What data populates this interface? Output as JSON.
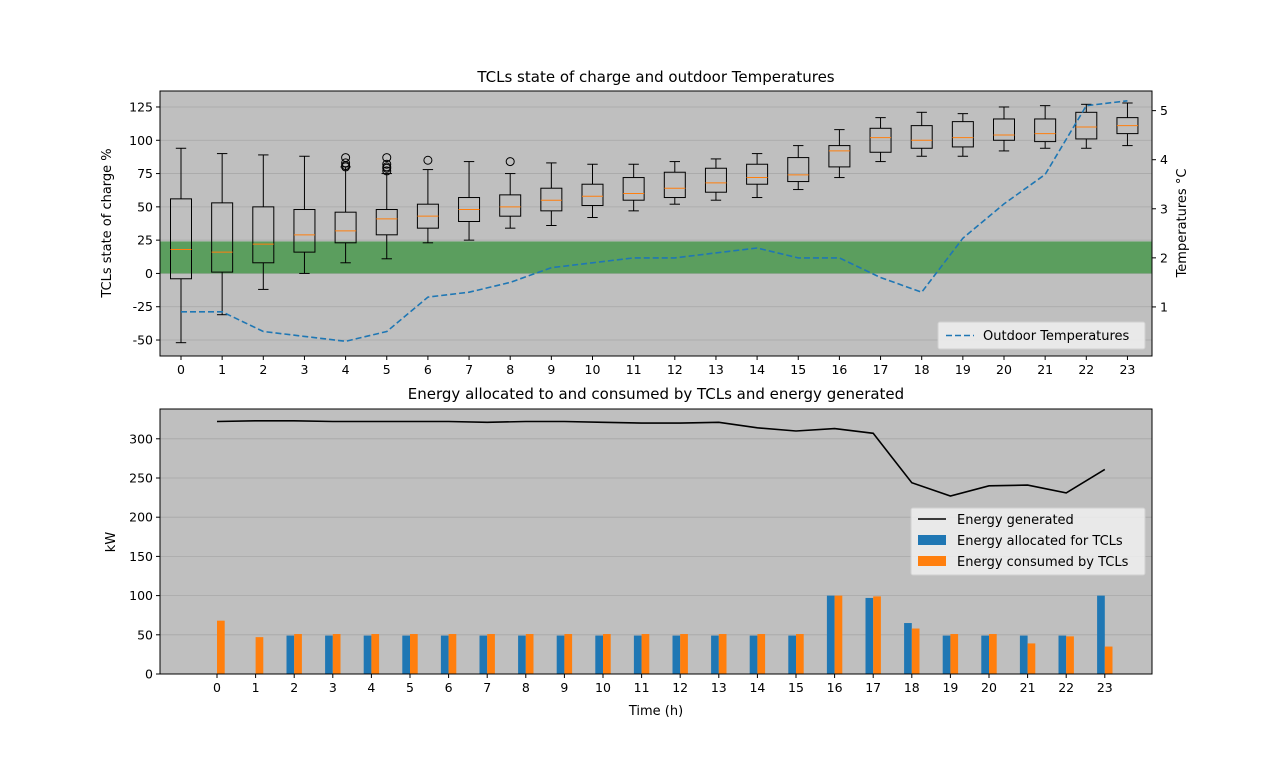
{
  "chart_data": [
    {
      "type": "box",
      "title": "TCLs state of charge and outdoor Temperatures",
      "xlabel": "",
      "ylabel": "TCLs state of charge %",
      "y2label": "Temperatures °C",
      "x": [
        0,
        1,
        2,
        3,
        4,
        5,
        6,
        7,
        8,
        9,
        10,
        11,
        12,
        13,
        14,
        15,
        16,
        17,
        18,
        19,
        20,
        21,
        22,
        23
      ],
      "ylim": [
        -62,
        137
      ],
      "y2lim": [
        0.0,
        5.4
      ],
      "yticks": [
        -50,
        -25,
        0,
        25,
        50,
        75,
        100,
        125
      ],
      "y2ticks": [
        1,
        2,
        3,
        4,
        5
      ],
      "grid": true,
      "band": {
        "from": 0,
        "to": 24,
        "color": "#5b9e5e"
      },
      "colors": {
        "background": "#bfbfbf",
        "box": "#000000",
        "median": "#ff7f0e",
        "temperature": "#1f77b4"
      },
      "boxes": [
        {
          "whislo": -52,
          "q1": -4,
          "med": 18,
          "q3": 56,
          "whishi": 94,
          "fliers": []
        },
        {
          "whislo": -31,
          "q1": 1,
          "med": 16,
          "q3": 53,
          "whishi": 90,
          "fliers": []
        },
        {
          "whislo": -12,
          "q1": 8,
          "med": 22,
          "q3": 50,
          "whishi": 89,
          "fliers": []
        },
        {
          "whislo": 0,
          "q1": 16,
          "med": 29,
          "q3": 48,
          "whishi": 88,
          "fliers": []
        },
        {
          "whislo": 8,
          "q1": 23,
          "med": 32,
          "q3": 46,
          "whishi": 80,
          "fliers": [
            80,
            81,
            83,
            87
          ]
        },
        {
          "whislo": 11,
          "q1": 29,
          "med": 41,
          "q3": 48,
          "whishi": 75,
          "fliers": [
            77,
            79,
            80,
            82,
            87
          ]
        },
        {
          "whislo": 23,
          "q1": 34,
          "med": 43,
          "q3": 52,
          "whishi": 78,
          "fliers": [
            85
          ]
        },
        {
          "whislo": 25,
          "q1": 39,
          "med": 48,
          "q3": 57,
          "whishi": 84,
          "fliers": []
        },
        {
          "whislo": 34,
          "q1": 43,
          "med": 50,
          "q3": 59,
          "whishi": 75,
          "fliers": [
            84
          ]
        },
        {
          "whislo": 36,
          "q1": 47,
          "med": 55,
          "q3": 64,
          "whishi": 83,
          "fliers": []
        },
        {
          "whislo": 42,
          "q1": 51,
          "med": 58,
          "q3": 67,
          "whishi": 82,
          "fliers": []
        },
        {
          "whislo": 47,
          "q1": 55,
          "med": 60,
          "q3": 72,
          "whishi": 82,
          "fliers": []
        },
        {
          "whislo": 52,
          "q1": 57,
          "med": 64,
          "q3": 76,
          "whishi": 84,
          "fliers": []
        },
        {
          "whislo": 55,
          "q1": 61,
          "med": 68,
          "q3": 79,
          "whishi": 86,
          "fliers": []
        },
        {
          "whislo": 57,
          "q1": 67,
          "med": 72,
          "q3": 82,
          "whishi": 90,
          "fliers": []
        },
        {
          "whislo": 63,
          "q1": 69,
          "med": 74,
          "q3": 87,
          "whishi": 96,
          "fliers": []
        },
        {
          "whislo": 72,
          "q1": 80,
          "med": 92,
          "q3": 96,
          "whishi": 108,
          "fliers": []
        },
        {
          "whislo": 84,
          "q1": 91,
          "med": 102,
          "q3": 109,
          "whishi": 117,
          "fliers": []
        },
        {
          "whislo": 88,
          "q1": 94,
          "med": 100,
          "q3": 111,
          "whishi": 121,
          "fliers": []
        },
        {
          "whislo": 88,
          "q1": 95,
          "med": 102,
          "q3": 114,
          "whishi": 120,
          "fliers": []
        },
        {
          "whislo": 92,
          "q1": 100,
          "med": 104,
          "q3": 116,
          "whishi": 125,
          "fliers": []
        },
        {
          "whislo": 94,
          "q1": 99,
          "med": 105,
          "q3": 116,
          "whishi": 126,
          "fliers": []
        },
        {
          "whislo": 94,
          "q1": 101,
          "med": 110,
          "q3": 121,
          "whishi": 127,
          "fliers": []
        },
        {
          "whislo": 96,
          "q1": 105,
          "med": 111,
          "q3": 117,
          "whishi": 128,
          "fliers": []
        }
      ],
      "series": [
        {
          "name": "Outdoor Temperatures",
          "axis": "right",
          "style": "dashed",
          "values": [
            0.9,
            0.9,
            0.5,
            0.4,
            0.3,
            0.5,
            1.2,
            1.3,
            1.5,
            1.8,
            1.9,
            2.0,
            2.0,
            2.1,
            2.2,
            2.0,
            2.0,
            1.6,
            1.3,
            2.4,
            3.1,
            3.7,
            5.1,
            5.2
          ]
        }
      ],
      "legend": {
        "position": "lower-right",
        "entries": [
          "Outdoor Temperatures"
        ]
      }
    },
    {
      "type": "bar",
      "title": "Energy allocated to and consumed by TCLs and energy generated",
      "xlabel": "Time (h)",
      "ylabel": "kW",
      "categories": [
        0,
        1,
        2,
        3,
        4,
        5,
        6,
        7,
        8,
        9,
        10,
        11,
        12,
        13,
        14,
        15,
        16,
        17,
        18,
        19,
        20,
        21,
        22,
        23
      ],
      "ylim": [
        0,
        338
      ],
      "yticks": [
        0,
        50,
        100,
        150,
        200,
        250,
        300
      ],
      "grid": true,
      "colors": {
        "background": "#bfbfbf",
        "generated": "#000000",
        "allocated": "#1f77b4",
        "consumed": "#ff7f0e"
      },
      "series": [
        {
          "name": "Energy generated",
          "kind": "line",
          "values": [
            322,
            323,
            323,
            322,
            322,
            322,
            322,
            321,
            322,
            322,
            321,
            320,
            320,
            321,
            314,
            310,
            313,
            307,
            244,
            227,
            240,
            241,
            231,
            261
          ]
        },
        {
          "name": "Energy allocated for TCLs",
          "kind": "bar",
          "values": [
            0,
            0,
            49,
            49,
            49,
            49,
            49,
            49,
            49,
            49,
            49,
            49,
            49,
            49,
            49,
            49,
            100,
            97,
            65,
            49,
            49,
            49,
            49,
            100
          ]
        },
        {
          "name": "Energy consumed by TCLs",
          "kind": "bar",
          "values": [
            68,
            47,
            51,
            51,
            51,
            51,
            51,
            51,
            51,
            51,
            51,
            51,
            51,
            51,
            51,
            51,
            100,
            99,
            58,
            51,
            51,
            39,
            48,
            35
          ]
        }
      ],
      "legend": {
        "position": "center-right",
        "entries": [
          "Energy generated",
          "Energy allocated for TCLs",
          "Energy consumed by TCLs"
        ]
      }
    }
  ]
}
